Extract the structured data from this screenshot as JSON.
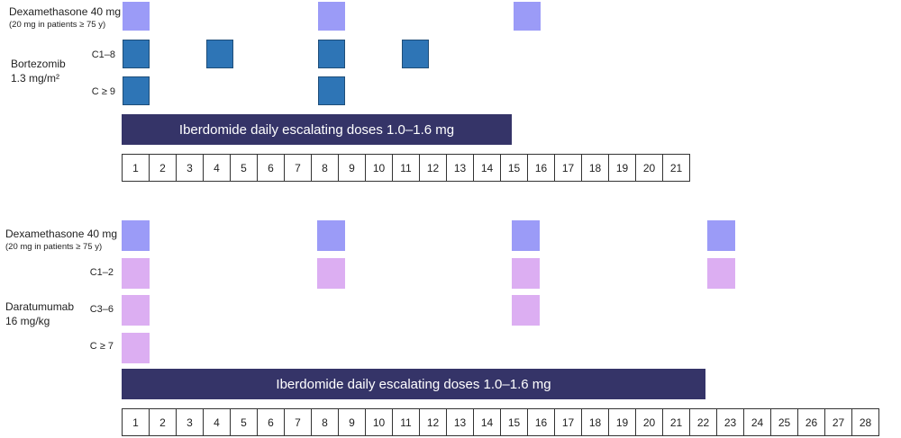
{
  "top": {
    "dex_label": "Dexamethasone 40 mg",
    "dex_sub": "(20 mg in patients ≥ 75 y)",
    "bort_label": "Bortezomib",
    "bort_dose": "1.3 mg/m²",
    "c1_8": "C1–8",
    "c9": "C ≥ 9",
    "bar": "Iberdomide daily escalating doses 1.0–1.6 mg",
    "days": [
      "1",
      "2",
      "3",
      "4",
      "5",
      "6",
      "7",
      "8",
      "9",
      "10",
      "11",
      "12",
      "13",
      "14",
      "15",
      "16",
      "17",
      "18",
      "19",
      "20",
      "21"
    ]
  },
  "bottom": {
    "dex_label": "Dexamethasone 40 mg",
    "dex_sub": "(20 mg in patients ≥ 75 y)",
    "dara_label": "Daratumumab",
    "dara_dose": "16 mg/kg",
    "c1_2": "C1–2",
    "c3_6": "C3–6",
    "c7": "C ≥ 7",
    "bar": "Iberdomide daily escalating doses 1.0–1.6 mg",
    "days": [
      "1",
      "2",
      "3",
      "4",
      "5",
      "6",
      "7",
      "8",
      "9",
      "10",
      "11",
      "12",
      "13",
      "14",
      "15",
      "16",
      "17",
      "18",
      "19",
      "20",
      "21",
      "22",
      "23",
      "24",
      "25",
      "26",
      "27",
      "28"
    ]
  },
  "colors": {
    "dexamethasone": "#9b9bf7",
    "bortezomib": "#2e75b6",
    "daratumumab": "#dcaef2",
    "iberdomide": "#353468"
  }
}
